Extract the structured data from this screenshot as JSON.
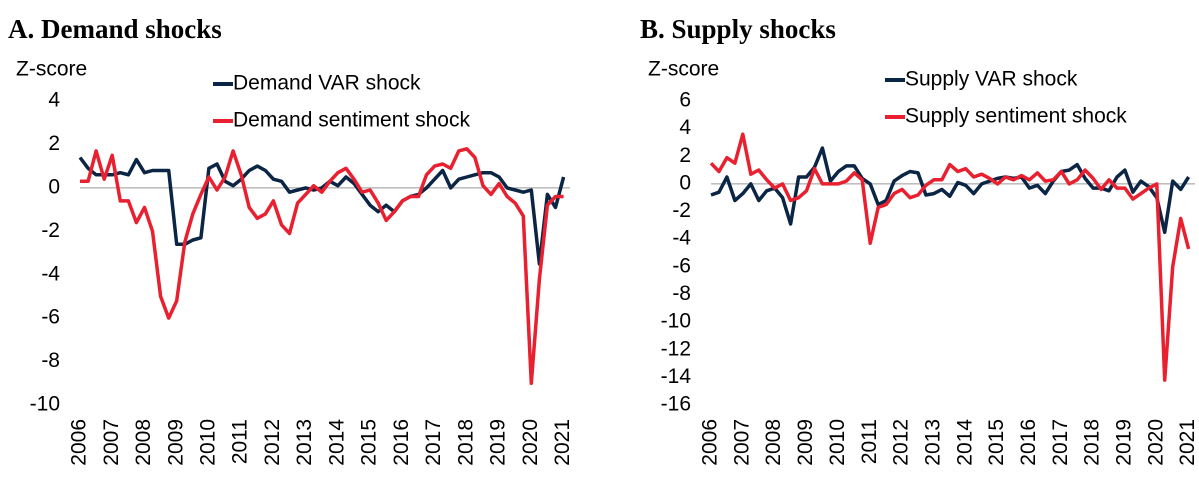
{
  "chart_data": [
    {
      "type": "line",
      "title": "A. Demand shocks",
      "y_label": "Z-score",
      "x": [
        2006,
        2006.25,
        2006.5,
        2006.75,
        2007,
        2007.25,
        2007.5,
        2007.75,
        2008,
        2008.25,
        2008.5,
        2008.75,
        2009,
        2009.25,
        2009.5,
        2009.75,
        2010,
        2010.25,
        2010.5,
        2010.75,
        2011,
        2011.25,
        2011.5,
        2011.75,
        2012,
        2012.25,
        2012.5,
        2012.75,
        2013,
        2013.25,
        2013.5,
        2013.75,
        2014,
        2014.25,
        2014.5,
        2014.75,
        2015,
        2015.25,
        2015.5,
        2015.75,
        2016,
        2016.25,
        2016.5,
        2016.75,
        2017,
        2017.25,
        2017.5,
        2017.75,
        2018,
        2018.25,
        2018.5,
        2018.75,
        2019,
        2019.25,
        2019.5,
        2019.75,
        2020,
        2020.25,
        2020.5,
        2020.75,
        2021
      ],
      "series": [
        {
          "name": "Demand VAR shock",
          "color": "#0b2545",
          "values": [
            1.4,
            0.9,
            0.6,
            0.6,
            0.6,
            0.7,
            0.6,
            1.3,
            0.7,
            0.8,
            0.8,
            0.8,
            -2.6,
            -2.6,
            -2.4,
            -2.3,
            0.9,
            1.1,
            0.3,
            0.1,
            0.4,
            0.8,
            1.0,
            0.8,
            0.4,
            0.3,
            -0.2,
            -0.1,
            0.0,
            -0.1,
            0.0,
            0.3,
            0.1,
            0.5,
            0.2,
            -0.3,
            -0.8,
            -1.1,
            -0.8,
            -1.1,
            -0.6,
            -0.4,
            -0.3,
            0.0,
            0.4,
            0.8,
            0.0,
            0.4,
            0.5,
            0.6,
            0.7,
            0.7,
            0.5,
            0.0,
            -0.1,
            -0.2,
            -0.1,
            -3.5,
            -0.3,
            -0.9,
            0.5
          ]
        },
        {
          "name": "Demand sentiment shock",
          "color": "#e8202f",
          "values": [
            0.3,
            0.3,
            1.7,
            0.4,
            1.5,
            -0.6,
            -0.6,
            -1.6,
            -0.9,
            -2.0,
            -5.0,
            -6.0,
            -5.2,
            -2.5,
            -1.2,
            -0.3,
            0.5,
            -0.1,
            0.5,
            1.7,
            0.6,
            -0.9,
            -1.4,
            -1.2,
            -0.6,
            -1.7,
            -2.1,
            -0.7,
            -0.3,
            0.1,
            -0.2,
            0.3,
            0.7,
            0.9,
            0.4,
            -0.2,
            -0.1,
            -0.7,
            -1.5,
            -1.1,
            -0.6,
            -0.4,
            -0.4,
            0.6,
            1.0,
            1.1,
            0.9,
            1.7,
            1.8,
            1.4,
            0.1,
            -0.3,
            0.2,
            -0.4,
            -0.7,
            -1.3,
            -9.0,
            -4.2,
            -0.8,
            -0.4,
            -0.4
          ]
        }
      ],
      "xlim": [
        2006,
        2021.2
      ],
      "xticks": [
        2006,
        2007,
        2008,
        2009,
        2010,
        2011,
        2012,
        2013,
        2014,
        2015,
        2016,
        2017,
        2018,
        2019,
        2020,
        2021
      ],
      "ylim": [
        -10,
        4
      ],
      "yticks": [
        -10,
        -8,
        -6,
        -4,
        -2,
        0,
        2,
        4
      ]
    },
    {
      "type": "line",
      "title": "B. Supply shocks",
      "y_label": "Z-score",
      "x": [
        2006,
        2006.25,
        2006.5,
        2006.75,
        2007,
        2007.25,
        2007.5,
        2007.75,
        2008,
        2008.25,
        2008.5,
        2008.75,
        2009,
        2009.25,
        2009.5,
        2009.75,
        2010,
        2010.25,
        2010.5,
        2010.75,
        2011,
        2011.25,
        2011.5,
        2011.75,
        2012,
        2012.25,
        2012.5,
        2012.75,
        2013,
        2013.25,
        2013.5,
        2013.75,
        2014,
        2014.25,
        2014.5,
        2014.75,
        2015,
        2015.25,
        2015.5,
        2015.75,
        2016,
        2016.25,
        2016.5,
        2016.75,
        2017,
        2017.25,
        2017.5,
        2017.75,
        2018,
        2018.25,
        2018.5,
        2018.75,
        2019,
        2019.25,
        2019.5,
        2019.75,
        2020,
        2020.25,
        2020.5,
        2020.75,
        2021
      ],
      "series": [
        {
          "name": "Supply VAR shock",
          "color": "#0b2545",
          "values": [
            -0.8,
            -0.6,
            0.5,
            -1.2,
            -0.7,
            0.0,
            -1.2,
            -0.5,
            -0.3,
            -1.0,
            -2.9,
            0.5,
            0.5,
            1.2,
            2.6,
            0.2,
            0.9,
            1.3,
            1.3,
            0.4,
            0.0,
            -1.5,
            -1.2,
            0.2,
            0.6,
            0.9,
            0.8,
            -0.8,
            -0.7,
            -0.4,
            -0.9,
            0.1,
            -0.1,
            -0.7,
            0.0,
            0.2,
            0.4,
            0.5,
            0.4,
            0.5,
            -0.3,
            -0.1,
            -0.7,
            0.2,
            0.9,
            1.0,
            1.4,
            0.4,
            -0.3,
            -0.3,
            -0.5,
            0.5,
            1.0,
            -0.6,
            0.2,
            -0.2,
            -1.0,
            -3.5,
            0.2,
            -0.4,
            0.5
          ]
        },
        {
          "name": "Supply sentiment shock",
          "color": "#e8202f",
          "values": [
            1.5,
            0.9,
            1.9,
            1.5,
            3.6,
            0.7,
            1.0,
            0.3,
            -0.3,
            0.0,
            -1.2,
            -1.0,
            -0.5,
            1.1,
            0.0,
            0.0,
            0.0,
            0.2,
            0.8,
            0.3,
            -4.3,
            -1.7,
            -1.5,
            -0.7,
            -0.4,
            -1.0,
            -0.8,
            -0.1,
            0.3,
            0.3,
            1.4,
            0.9,
            1.1,
            0.5,
            0.7,
            0.4,
            0.0,
            0.5,
            0.3,
            0.6,
            0.3,
            0.8,
            0.2,
            0.3,
            0.9,
            0.0,
            0.3,
            1.0,
            0.4,
            -0.4,
            0.3,
            -0.3,
            -0.3,
            -1.1,
            -0.7,
            -0.3,
            0.0,
            -14.2,
            -6.0,
            -2.5,
            -4.7
          ]
        }
      ],
      "xlim": [
        2006,
        2021.2
      ],
      "xticks": [
        2006,
        2007,
        2008,
        2009,
        2010,
        2011,
        2012,
        2013,
        2014,
        2015,
        2016,
        2017,
        2018,
        2019,
        2020,
        2021
      ],
      "ylim": [
        -16,
        6
      ],
      "yticks": [
        -16,
        -14,
        -12,
        -10,
        -8,
        -6,
        -4,
        -2,
        0,
        2,
        4,
        6
      ]
    }
  ]
}
